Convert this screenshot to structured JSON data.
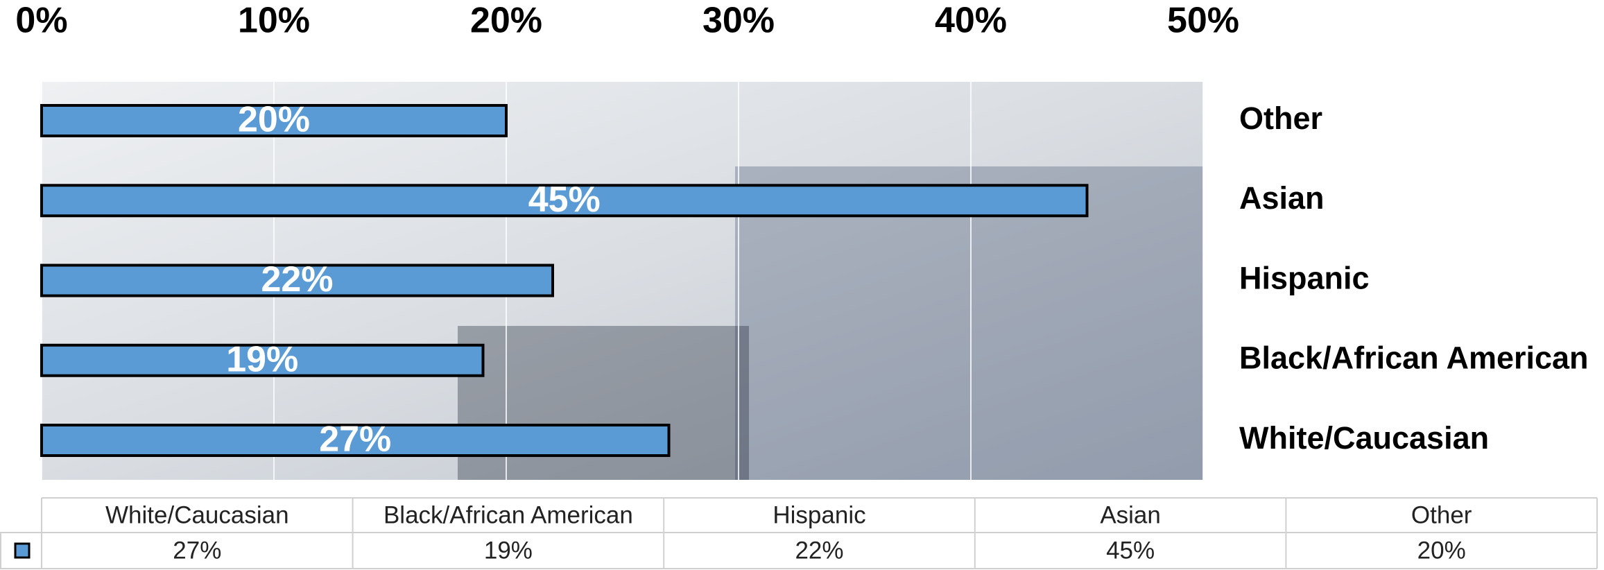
{
  "chart_data": {
    "type": "bar",
    "orientation": "horizontal",
    "categories": [
      "White/Caucasian",
      "Black/African American",
      "Hispanic",
      "Asian",
      "Other"
    ],
    "values": [
      27,
      19,
      22,
      45,
      20
    ],
    "value_labels": [
      "27%",
      "19%",
      "22%",
      "45%",
      "20%"
    ],
    "color": "#5b9bd5",
    "xlim": [
      0,
      50
    ],
    "xticks": [
      {
        "value": 0,
        "label": "0%"
      },
      {
        "value": 10,
        "label": "10%"
      },
      {
        "value": 20,
        "label": "20%"
      },
      {
        "value": 30,
        "label": "30%"
      },
      {
        "value": 40,
        "label": "40%"
      },
      {
        "value": 50,
        "label": "50%"
      }
    ],
    "grid": true,
    "data_table": true
  }
}
